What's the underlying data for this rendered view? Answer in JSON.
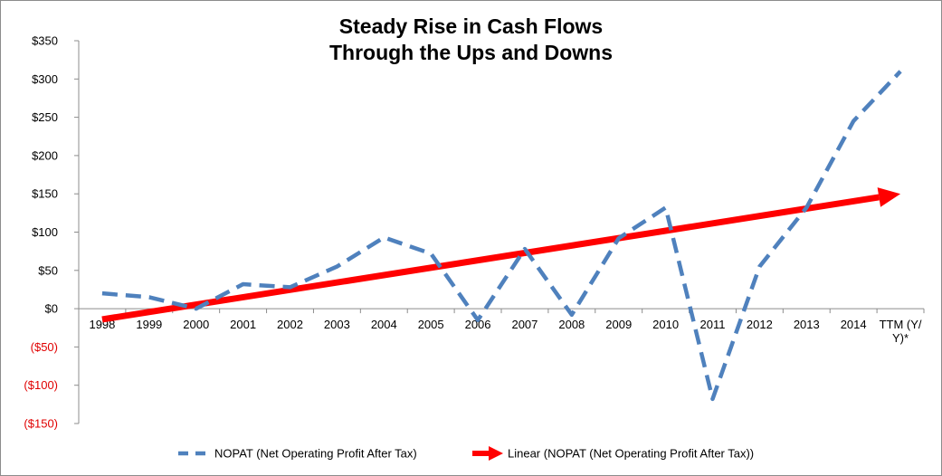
{
  "chart_data": {
    "type": "line",
    "title_lines": [
      "Steady Rise in Cash Flows",
      "Through the Ups and Downs"
    ],
    "categories": [
      "1998",
      "1999",
      "2000",
      "2001",
      "2002",
      "2003",
      "2004",
      "2005",
      "2006",
      "2007",
      "2008",
      "2009",
      "2010",
      "2011",
      "2012",
      "2013",
      "2014",
      [
        "TTM (Y/",
        "Y)*"
      ]
    ],
    "ylim": [
      -150,
      350
    ],
    "yticks": [
      {
        "value": 350,
        "label": "$350"
      },
      {
        "value": 300,
        "label": "$300"
      },
      {
        "value": 250,
        "label": "$250"
      },
      {
        "value": 200,
        "label": "$200"
      },
      {
        "value": 150,
        "label": "$150"
      },
      {
        "value": 100,
        "label": "$100"
      },
      {
        "value": 50,
        "label": "$50"
      },
      {
        "value": 0,
        "label": "$0"
      },
      {
        "value": -50,
        "label": "($50)"
      },
      {
        "value": -100,
        "label": "($100)"
      },
      {
        "value": -150,
        "label": "($150)"
      }
    ],
    "negative_label_color": "#e00000",
    "grid": false,
    "legend_position": "bottom",
    "series": [
      {
        "name": "NOPAT (Net Operating Profit After Tax)",
        "style": "dashed",
        "color": "#4f81bd",
        "values": [
          20,
          15,
          0,
          32,
          28,
          55,
          93,
          72,
          -15,
          78,
          -8,
          92,
          132,
          -118,
          55,
          132,
          245,
          310
        ]
      },
      {
        "name": "Linear (NOPAT (Net Operating Profit After Tax))",
        "style": "arrow",
        "color": "#ff0000",
        "start": -14,
        "end": 150
      }
    ]
  }
}
